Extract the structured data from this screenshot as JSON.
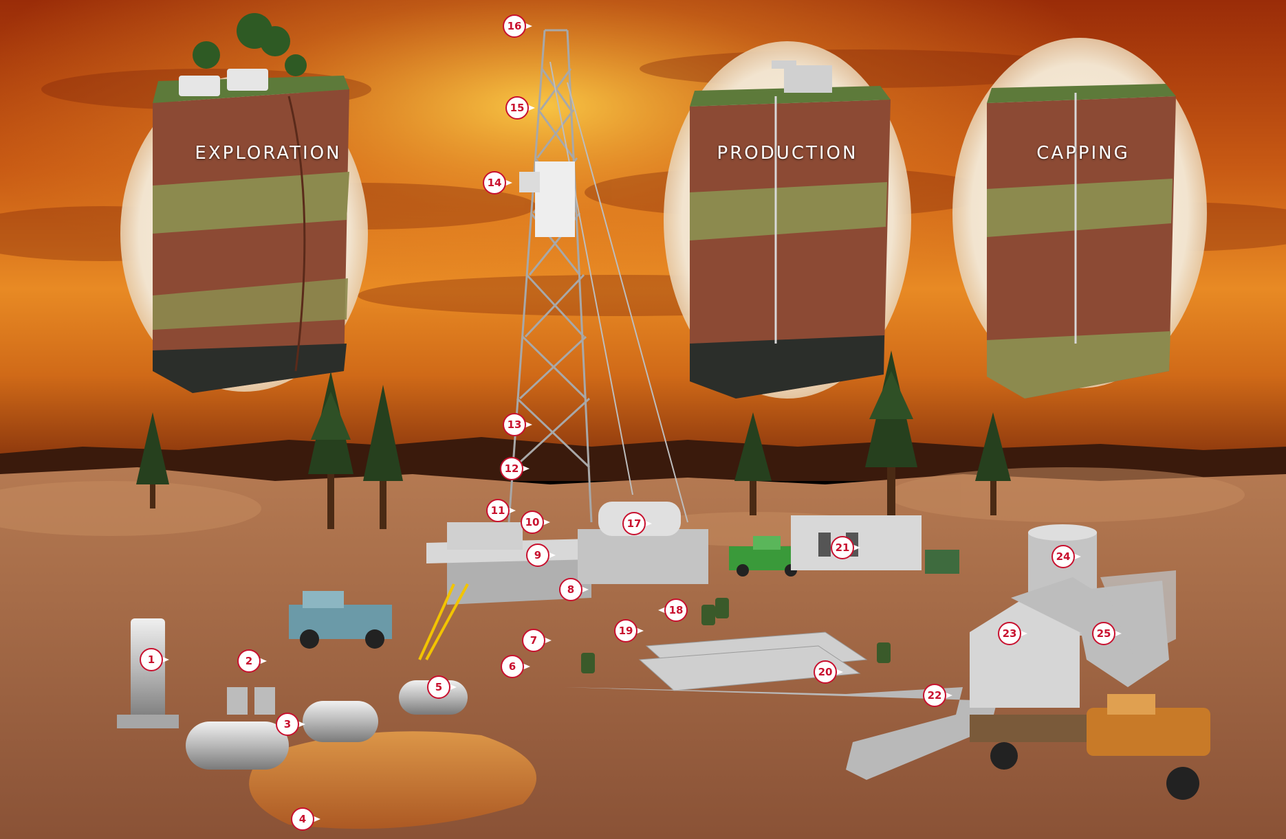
{
  "stages": [
    {
      "id": "exploration",
      "label": "EXPLORATION"
    },
    {
      "id": "production",
      "label": "PRODUCTION"
    },
    {
      "id": "capping",
      "label": "CAPPING"
    }
  ],
  "callouts": [
    "1",
    "2",
    "3",
    "4",
    "5",
    "6",
    "7",
    "8",
    "9",
    "10",
    "11",
    "12",
    "13",
    "14",
    "15",
    "16",
    "17",
    "18",
    "19",
    "20",
    "21",
    "22",
    "23",
    "24",
    "25"
  ],
  "colors": {
    "callout_fill": "#ffffff",
    "callout_border": "#c8102e",
    "callout_text": "#c8102e",
    "sky_top": "#b2380c",
    "sky_glow": "#f3a126",
    "ground": "#a86a43",
    "rock": "#8c4a34",
    "sandstone": "#8c8a4e",
    "oil": "#2b2e2a"
  }
}
